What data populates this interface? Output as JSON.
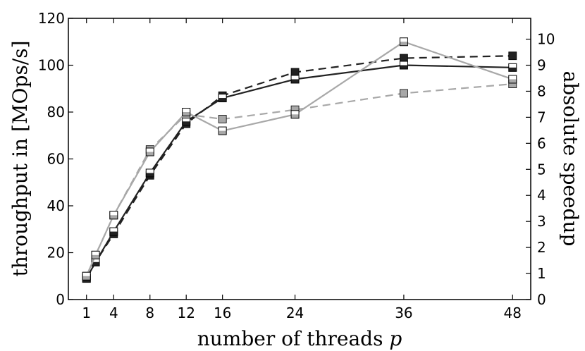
{
  "chart_data": {
    "type": "line",
    "title": "",
    "xlabel": "number of threads ",
    "xlabel_var": "p",
    "ylabel_left": "throughput in [MOps/s]",
    "ylabel_right": "absolute speedup",
    "x_ticks": [
      1,
      4,
      8,
      12,
      16,
      24,
      36,
      48
    ],
    "y_left_ticks": [
      0,
      20,
      40,
      60,
      80,
      100,
      120
    ],
    "y_right_ticks": [
      0,
      1,
      2,
      3,
      4,
      5,
      6,
      7,
      8,
      9,
      10
    ],
    "xlim": [
      -1,
      50
    ],
    "ylim_left": [
      0,
      120
    ],
    "ylim_right": [
      0,
      10.8
    ],
    "grid": false,
    "legend": "none",
    "colors": {
      "dark": "#222222",
      "light": "#a8a8a8",
      "axis": "#000000"
    },
    "series": [
      {
        "color": "dark",
        "line": "dashed",
        "marker": "filled",
        "x": [
          1,
          2,
          4,
          8,
          12,
          16,
          24,
          36,
          48
        ],
        "y": [
          9,
          16,
          28,
          53,
          75,
          87,
          97,
          103,
          104
        ]
      },
      {
        "color": "dark",
        "line": "solid",
        "marker": "half",
        "x": [
          1,
          2,
          4,
          8,
          12,
          16,
          24,
          36,
          48
        ],
        "y": [
          9,
          16,
          29,
          54,
          76,
          86,
          94,
          100,
          99
        ]
      },
      {
        "color": "light",
        "line": "dashed",
        "marker": "filled",
        "x": [
          1,
          2,
          4,
          8,
          12,
          16,
          24,
          36,
          48
        ],
        "y": [
          10,
          19,
          36,
          64,
          79,
          77,
          81,
          88,
          92
        ]
      },
      {
        "color": "light",
        "line": "solid",
        "marker": "half",
        "x": [
          1,
          2,
          4,
          8,
          12,
          16,
          24,
          36,
          48
        ],
        "y": [
          10,
          19,
          36,
          63,
          80,
          72,
          79,
          110,
          94
        ]
      }
    ]
  }
}
